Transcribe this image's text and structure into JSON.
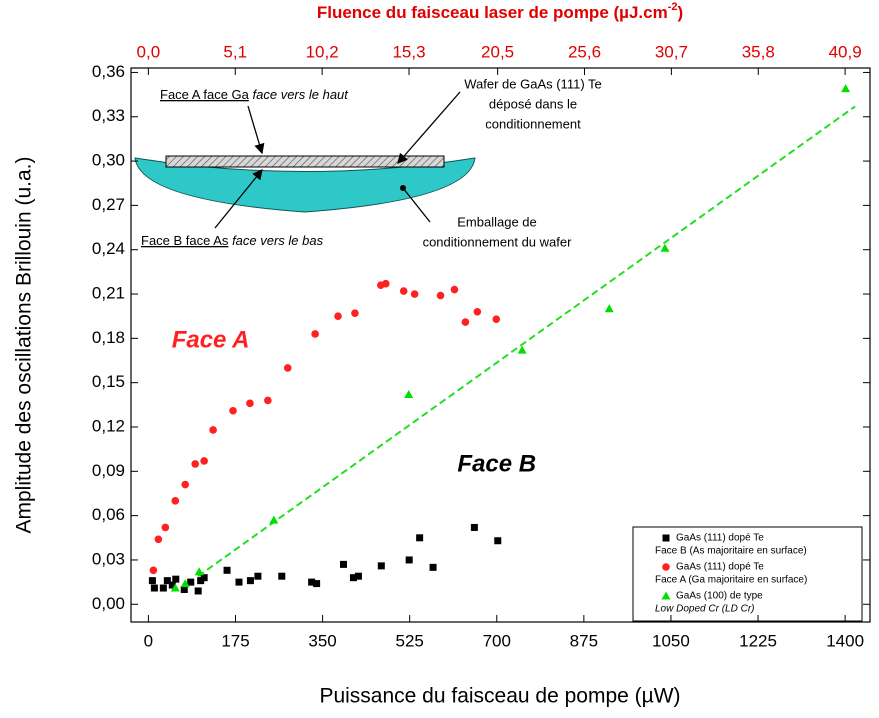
{
  "chart_data": {
    "type": "scatter",
    "x_label": "Puissance du faisceau de pompe (µW)",
    "y_label": "Amplitude des oscillations Brillouin (u.a.)",
    "x2_label": "Fluence du faisceau laser de pompe (µJ.cm",
    "x2_label_sup": "-2",
    "x2_label_end": ")",
    "x2_color": "#e00000",
    "xlim": [
      -35,
      1450
    ],
    "xticks": [
      0,
      175,
      350,
      525,
      700,
      875,
      1050,
      1225,
      1400
    ],
    "x2lim": [
      -1.02,
      42.36
    ],
    "x2ticks": [
      {
        "value": 0,
        "label": "0,0"
      },
      {
        "value": 5.1,
        "label": "5,1"
      },
      {
        "value": 10.2,
        "label": "10,2"
      },
      {
        "value": 15.3,
        "label": "15,3"
      },
      {
        "value": 20.5,
        "label": "20,5"
      },
      {
        "value": 25.6,
        "label": "25,6"
      },
      {
        "value": 30.7,
        "label": "30,7"
      },
      {
        "value": 35.8,
        "label": "35,8"
      },
      {
        "value": 40.9,
        "label": "40,9"
      }
    ],
    "ylim": [
      -0.012,
      0.363
    ],
    "yticks": [
      {
        "value": 0,
        "label": "0,00"
      },
      {
        "value": 0.03,
        "label": "0,03"
      },
      {
        "value": 0.06,
        "label": "0,06"
      },
      {
        "value": 0.09,
        "label": "0,09"
      },
      {
        "value": 0.12,
        "label": "0,12"
      },
      {
        "value": 0.15,
        "label": "0,15"
      },
      {
        "value": 0.18,
        "label": "0,18"
      },
      {
        "value": 0.21,
        "label": "0,21"
      },
      {
        "value": 0.24,
        "label": "0,24"
      },
      {
        "value": 0.27,
        "label": "0,27"
      },
      {
        "value": 0.3,
        "label": "0,30"
      },
      {
        "value": 0.33,
        "label": "0,33"
      },
      {
        "value": 0.36,
        "label": "0,36"
      }
    ],
    "series": [
      {
        "name": "GaAs (111) dopé Te",
        "description": "Face B (As majoritaire en surface)",
        "color": "#000000",
        "marker": "square",
        "x": [
          8,
          12,
          30,
          38,
          48,
          55,
          72,
          85,
          100,
          105,
          112,
          158,
          182,
          205,
          220,
          268,
          328,
          338,
          392,
          412,
          422,
          468,
          524,
          545,
          572,
          655,
          702
        ],
        "values": [
          0.016,
          0.011,
          0.011,
          0.016,
          0.013,
          0.017,
          0.01,
          0.015,
          0.009,
          0.016,
          0.018,
          0.023,
          0.015,
          0.016,
          0.019,
          0.019,
          0.015,
          0.014,
          0.027,
          0.018,
          0.019,
          0.026,
          0.03,
          0.045,
          0.025,
          0.052,
          0.043
        ]
      },
      {
        "name": "GaAs (111) dopé Te",
        "description": "Face A (Ga majoritaire en surface)",
        "color": "#ff2020",
        "marker": "circle",
        "x": [
          10,
          20,
          34,
          54,
          74,
          94,
          112,
          130,
          170,
          204,
          240,
          280,
          335,
          381,
          415,
          467,
          477,
          513,
          535,
          587,
          615,
          637,
          661,
          699
        ],
        "values": [
          0.023,
          0.044,
          0.052,
          0.07,
          0.081,
          0.095,
          0.097,
          0.118,
          0.131,
          0.136,
          0.138,
          0.16,
          0.183,
          0.195,
          0.197,
          0.216,
          0.217,
          0.212,
          0.21,
          0.209,
          0.213,
          0.191,
          0.198,
          0.193
        ]
      },
      {
        "name": "GaAs (100) de type",
        "description": "Low Doped Cr (LD Cr)",
        "color": "#00e000",
        "marker": "triangle",
        "x": [
          54,
          74,
          102,
          252,
          523,
          751,
          926,
          1038,
          1401
        ],
        "values": [
          0.011,
          0.014,
          0.022,
          0.057,
          0.142,
          0.172,
          0.2,
          0.241,
          0.349
        ]
      }
    ],
    "fit_line": {
      "x": [
        100,
        1420
      ],
      "values": [
        0.019,
        0.337
      ],
      "color": "#20e020"
    },
    "annotations": [
      {
        "text": "Face A",
        "x": 125,
        "y": 0.178,
        "color": "#ff2020"
      },
      {
        "text": "Face B",
        "x": 700,
        "y": 0.094,
        "color": "#000000"
      }
    ],
    "legend_position": "lower right",
    "inset": {
      "top_label_underlined": "Face A face Ga",
      "top_label_italic": "face vers le haut",
      "bottom_label_underlined": "Face B face As",
      "bottom_label_italic": "face vers le bas",
      "wafer_label": [
        "Wafer de GaAs (111) Te",
        "déposé dans le",
        "conditionnement"
      ],
      "package_label": [
        "Emballage de",
        "conditionnement du wafer"
      ]
    }
  }
}
